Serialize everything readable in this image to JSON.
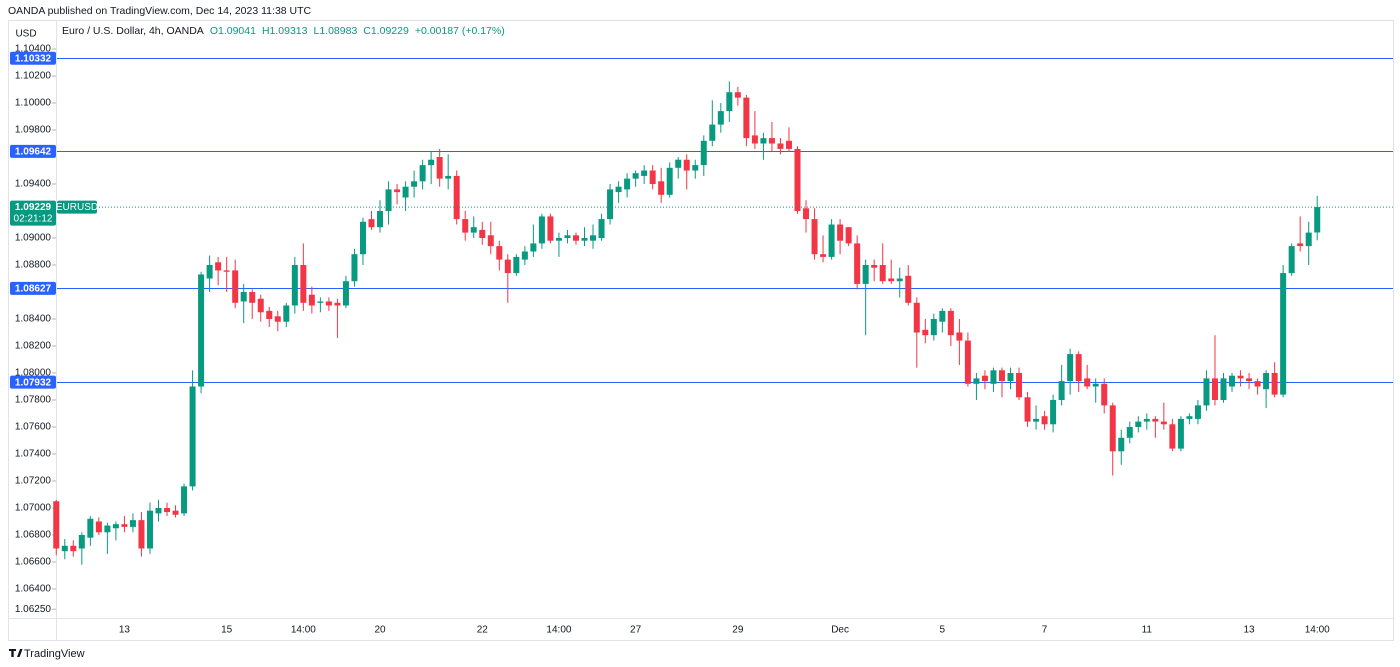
{
  "chart_data": {
    "type": "candlestick",
    "publisher": "OANDA published on TradingView.com, Dec 14, 2023 11:38 UTC",
    "title": "Euro / U.S. Dollar, 4h, OANDA",
    "legend_values": [
      "O1.09041",
      "H1.09313",
      "L1.08983",
      "C1.09229",
      "+0.00187 (+0.17%)"
    ],
    "y_unit": "USD",
    "symbol": "EURUSD",
    "last_price": 1.09229,
    "countdown": "02:21:12",
    "brand": "TradingView",
    "up_color": "#089981",
    "down_color": "#f23645",
    "level_color": "#2962ff",
    "levels": [
      1.10332,
      1.09642,
      1.08627,
      1.07932
    ],
    "ylim": [
      1.06185,
      1.10615
    ],
    "yticks": [
      {
        "value": 1.104,
        "label": "1.10400"
      },
      {
        "value": 1.102,
        "label": "1.10200"
      },
      {
        "value": 1.1,
        "label": "1.10000"
      },
      {
        "value": 1.098,
        "label": "1.09800"
      },
      {
        "value": 1.094,
        "label": "1.09400"
      },
      {
        "value": 1.09,
        "label": "1.09000"
      },
      {
        "value": 1.088,
        "label": "1.08800"
      },
      {
        "value": 1.084,
        "label": "1.08400"
      },
      {
        "value": 1.082,
        "label": "1.08200"
      },
      {
        "value": 1.08,
        "label": "1.08000"
      },
      {
        "value": 1.078,
        "label": "1.07800"
      },
      {
        "value": 1.076,
        "label": "1.07600"
      },
      {
        "value": 1.074,
        "label": "1.07400"
      },
      {
        "value": 1.072,
        "label": "1.07200"
      },
      {
        "value": 1.07,
        "label": "1.07000"
      },
      {
        "value": 1.068,
        "label": "1.06800"
      },
      {
        "value": 1.066,
        "label": "1.06600"
      },
      {
        "value": 1.064,
        "label": "1.06400"
      },
      {
        "value": 1.0625,
        "label": "1.06250"
      }
    ],
    "categories": [
      null,
      null,
      null,
      null,
      null,
      null,
      null,
      null,
      "13",
      null,
      null,
      null,
      null,
      null,
      null,
      null,
      null,
      null,
      null,
      null,
      "15",
      null,
      null,
      null,
      null,
      null,
      null,
      null,
      null,
      "14:00",
      null,
      null,
      null,
      null,
      null,
      null,
      null,
      null,
      "20",
      null,
      null,
      null,
      null,
      null,
      null,
      null,
      null,
      null,
      null,
      null,
      "22",
      null,
      null,
      null,
      null,
      null,
      null,
      null,
      null,
      "14:00",
      null,
      null,
      null,
      null,
      null,
      null,
      null,
      null,
      "27",
      null,
      null,
      null,
      null,
      null,
      null,
      null,
      null,
      null,
      null,
      null,
      "29",
      null,
      null,
      null,
      null,
      null,
      null,
      null,
      null,
      null,
      null,
      null,
      "Dec",
      null,
      null,
      null,
      null,
      null,
      null,
      null,
      null,
      null,
      null,
      null,
      "5",
      null,
      null,
      null,
      null,
      null,
      null,
      null,
      null,
      null,
      null,
      null,
      "7",
      null,
      null,
      null,
      null,
      null,
      null,
      null,
      null,
      null,
      null,
      null,
      "11",
      null,
      null,
      null,
      null,
      null,
      null,
      null,
      null,
      null,
      null,
      null,
      "13",
      null,
      null,
      null,
      null,
      null,
      null,
      null,
      "14:00"
    ],
    "open": [
      1.0705,
      1.0668,
      1.0672,
      1.067,
      1.0678,
      1.069,
      1.0682,
      1.0685,
      1.0688,
      1.0686,
      1.0691,
      1.067,
      1.0696,
      1.07,
      1.0698,
      1.0696,
      1.0716,
      1.079,
      1.087,
      1.0882,
      1.0876,
      1.0876,
      1.0853,
      1.086,
      1.0855,
      1.0846,
      1.0842,
      1.0838,
      1.085,
      1.088,
      1.0858,
      1.0852,
      1.0853,
      1.0852,
      1.085,
      1.0868,
      1.0888,
      1.0914,
      1.0908,
      1.092,
      1.0936,
      1.093,
      1.0938,
      1.0942,
      1.0954,
      1.096,
      1.0944,
      1.0946,
      1.0914,
      1.0904,
      1.0906,
      1.0902,
      1.0894,
      1.0884,
      1.0874,
      1.0884,
      1.089,
      1.0896,
      1.0916,
      1.0898,
      1.09,
      1.0902,
      1.0898,
      1.0898,
      1.09,
      1.0914,
      1.0934,
      1.0936,
      1.0944,
      1.0946,
      1.095,
      1.0942,
      1.0932,
      1.0952,
      1.0958,
      1.095,
      1.0954,
      1.0972,
      1.0984,
      1.0994,
      1.1008,
      1.1004,
      1.0976,
      1.097,
      1.0974,
      1.097,
      1.0972,
      1.0966,
      1.0922,
      1.0914,
      1.0888,
      1.0886,
      1.091,
      1.0908,
      1.0896,
      1.0866,
      1.088,
      1.088,
      1.087,
      1.0868,
      1.0872,
      1.0852,
      1.0832,
      1.0828,
      1.0838,
      1.0846,
      1.083,
      1.0824,
      1.0792,
      1.0798,
      1.0792,
      1.0802,
      1.0794,
      1.08,
      1.0782,
      1.0764,
      1.0768,
      1.0762,
      1.078,
      1.0794,
      1.0814,
      1.0796,
      1.079,
      1.0792,
      1.0776,
      1.0742,
      1.0752,
      1.076,
      1.0764,
      1.0766,
      1.0764,
      1.0762,
      1.0744,
      1.0766,
      1.0766,
      1.0776,
      1.0796,
      1.078,
      1.079,
      1.0798,
      1.0796,
      1.0794,
      1.0788,
      1.08,
      1.0784,
      1.0874,
      1.0896,
      1.0894,
      1.09041
    ],
    "high": [
      1.0706,
      1.0677,
      1.0676,
      1.0682,
      1.0694,
      1.0693,
      1.0689,
      1.069,
      1.0694,
      1.0696,
      1.0697,
      1.0704,
      1.0706,
      1.0704,
      1.0702,
      1.0718,
      1.0802,
      1.0875,
      1.0887,
      1.0886,
      1.0886,
      1.0884,
      1.0866,
      1.0862,
      1.0858,
      1.0849,
      1.0846,
      1.0852,
      1.0886,
      1.0896,
      1.0864,
      1.0856,
      1.0856,
      1.0855,
      1.0872,
      1.0892,
      1.0915,
      1.092,
      1.0928,
      1.0942,
      1.094,
      1.0942,
      1.095,
      1.0958,
      1.0964,
      1.0966,
      1.0962,
      1.095,
      1.092,
      1.0916,
      1.0912,
      1.0912,
      1.0898,
      1.0888,
      1.0888,
      1.0894,
      1.091,
      1.0918,
      1.0918,
      1.0904,
      1.0906,
      1.0904,
      1.0908,
      1.091,
      1.0918,
      1.094,
      1.0942,
      1.0948,
      1.095,
      1.0954,
      1.0954,
      1.0952,
      1.0956,
      1.096,
      1.0962,
      1.0958,
      1.0976,
      1.1002,
      1.1,
      1.1016,
      1.1012,
      1.1006,
      1.0994,
      1.0978,
      1.0986,
      1.0974,
      1.0982,
      1.0968,
      1.0928,
      1.0922,
      1.0902,
      1.0914,
      1.0914,
      1.0908,
      1.0902,
      1.0884,
      1.0884,
      1.0896,
      1.0884,
      1.0878,
      1.088,
      1.0856,
      1.084,
      1.0844,
      1.0848,
      1.0848,
      1.084,
      1.083,
      1.08,
      1.0802,
      1.0804,
      1.0804,
      1.0804,
      1.0804,
      1.0786,
      1.0776,
      1.0772,
      1.0784,
      1.0806,
      1.0818,
      1.0816,
      1.0806,
      1.0796,
      1.0796,
      1.0778,
      1.0758,
      1.0764,
      1.0768,
      1.077,
      1.0768,
      1.0778,
      1.0766,
      1.0768,
      1.077,
      1.078,
      1.0802,
      1.0828,
      1.08,
      1.08,
      1.0802,
      1.08,
      1.0796,
      1.0802,
      1.0808,
      1.088,
      1.0896,
      1.0916,
      1.0912,
      1.09313
    ],
    "low": [
      1.0665,
      1.0662,
      1.0664,
      1.0658,
      1.0672,
      1.068,
      1.0666,
      1.0676,
      1.0682,
      1.0682,
      1.0664,
      1.0666,
      1.069,
      1.0694,
      1.0693,
      1.0694,
      1.0713,
      1.0785,
      1.086,
      1.0865,
      1.086,
      1.0848,
      1.0837,
      1.084,
      1.0838,
      1.0834,
      1.0831,
      1.0834,
      1.0844,
      1.0846,
      1.0844,
      1.0845,
      1.0846,
      1.0826,
      1.0848,
      1.0864,
      1.088,
      1.0906,
      1.0904,
      1.091,
      1.0925,
      1.092,
      1.093,
      1.0936,
      1.094,
      1.0938,
      1.0936,
      1.091,
      1.0898,
      1.09,
      1.0895,
      1.0888,
      1.0876,
      1.0852,
      1.0872,
      1.088,
      1.0886,
      1.0892,
      1.0896,
      1.0886,
      1.0896,
      1.0895,
      1.0894,
      1.0892,
      1.0898,
      1.091,
      1.0926,
      1.093,
      1.0938,
      1.094,
      1.0936,
      1.0926,
      1.093,
      1.0944,
      1.0936,
      1.0944,
      1.0946,
      1.0968,
      1.0978,
      1.0986,
      1.0998,
      1.0968,
      1.0966,
      1.0958,
      1.0964,
      1.0962,
      1.0964,
      1.0918,
      1.0904,
      1.0884,
      1.0882,
      1.0884,
      1.0888,
      1.0894,
      1.0862,
      1.0828,
      1.0868,
      1.0866,
      1.0866,
      1.0856,
      1.085,
      1.0804,
      1.0822,
      1.0824,
      1.083,
      1.082,
      1.0806,
      1.079,
      1.078,
      1.0788,
      1.0786,
      1.0782,
      1.0788,
      1.078,
      1.076,
      1.0758,
      1.0758,
      1.0756,
      1.0776,
      1.0784,
      1.0786,
      1.0788,
      1.0778,
      1.077,
      1.0724,
      1.0732,
      1.0748,
      1.0756,
      1.0758,
      1.0752,
      1.0758,
      1.0742,
      1.0742,
      1.0762,
      1.0762,
      1.0772,
      1.0776,
      1.0778,
      1.0786,
      1.079,
      1.0788,
      1.0784,
      1.0774,
      1.0782,
      1.0782,
      1.0872,
      1.089,
      1.088,
      1.08983
    ],
    "close": [
      1.067,
      1.0672,
      1.0668,
      1.068,
      1.0692,
      1.0682,
      1.0687,
      1.0688,
      1.0686,
      1.0691,
      1.067,
      1.0698,
      1.07,
      1.0697,
      1.0695,
      1.0716,
      1.079,
      1.0873,
      1.088,
      1.0876,
      1.0875,
      1.0852,
      1.086,
      1.0852,
      1.0845,
      1.084,
      1.0838,
      1.085,
      1.088,
      1.0852,
      1.085,
      1.0853,
      1.085,
      1.085,
      1.0868,
      1.0888,
      1.0912,
      1.0908,
      1.092,
      1.0936,
      1.0934,
      1.0938,
      1.0942,
      1.0954,
      1.0958,
      1.0944,
      1.0946,
      1.0914,
      1.0904,
      1.0908,
      1.09,
      1.0894,
      1.0884,
      1.0874,
      1.0886,
      1.089,
      1.0896,
      1.0916,
      1.0898,
      1.09,
      1.0902,
      1.0898,
      1.09,
      1.0902,
      1.0914,
      1.0936,
      1.0938,
      1.0944,
      1.0948,
      1.095,
      1.094,
      1.0932,
      1.0952,
      1.0958,
      1.095,
      1.0954,
      1.0972,
      1.0984,
      1.0994,
      1.1008,
      1.1004,
      1.0974,
      1.097,
      1.0974,
      1.097,
      1.0966,
      1.0966,
      1.092,
      1.0914,
      1.0888,
      1.0886,
      1.091,
      1.0898,
      1.0896,
      1.0866,
      1.088,
      1.0878,
      1.0868,
      1.0868,
      1.087,
      1.0852,
      1.083,
      1.0828,
      1.084,
      1.0846,
      1.0828,
      1.0824,
      1.0792,
      1.0796,
      1.0794,
      1.0802,
      1.0794,
      1.08,
      1.0782,
      1.0764,
      1.0766,
      1.0762,
      1.078,
      1.0794,
      1.0814,
      1.0794,
      1.079,
      1.0792,
      1.0776,
      1.0742,
      1.0752,
      1.076,
      1.0764,
      1.0766,
      1.0764,
      1.0762,
      1.0744,
      1.0766,
      1.0768,
      1.0776,
      1.0796,
      1.078,
      1.0796,
      1.0798,
      1.0796,
      1.0794,
      1.079,
      1.08,
      1.0784,
      1.0874,
      1.0894,
      1.0894,
      1.0904,
      1.09229
    ]
  }
}
